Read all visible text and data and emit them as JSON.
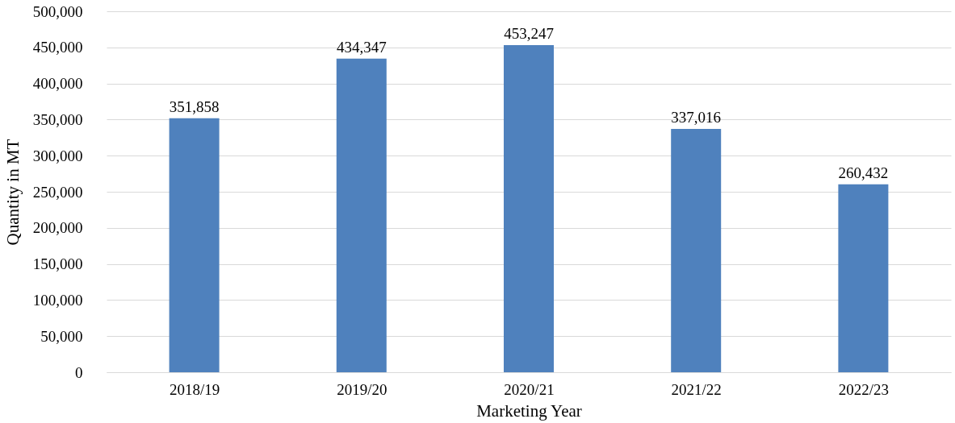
{
  "chart_data": {
    "type": "bar",
    "xlabel": "Marketing Year",
    "ylabel": "Quantity in MT",
    "categories": [
      "2018/19",
      "2019/20",
      "2020/21",
      "2021/22",
      "2022/23"
    ],
    "values": [
      351858,
      434347,
      453247,
      337016,
      260432
    ],
    "color": "#4f81bd",
    "ylim": [
      0,
      500000
    ],
    "yticks": [
      {
        "value": 0,
        "label": "0"
      },
      {
        "value": 50000,
        "label": "50,000"
      },
      {
        "value": 100000,
        "label": "100,000"
      },
      {
        "value": 150000,
        "label": "150,000"
      },
      {
        "value": 200000,
        "label": "200,000"
      },
      {
        "value": 250000,
        "label": "250,000"
      },
      {
        "value": 300000,
        "label": "300,000"
      },
      {
        "value": 350000,
        "label": "350,000"
      },
      {
        "value": 400000,
        "label": "400,000"
      },
      {
        "value": 450000,
        "label": "450,000"
      },
      {
        "value": 500000,
        "label": "500,000"
      }
    ],
    "value_labels": [
      "351,858",
      "434,347",
      "453,247",
      "337,016",
      "260,432"
    ],
    "grid": "y"
  }
}
